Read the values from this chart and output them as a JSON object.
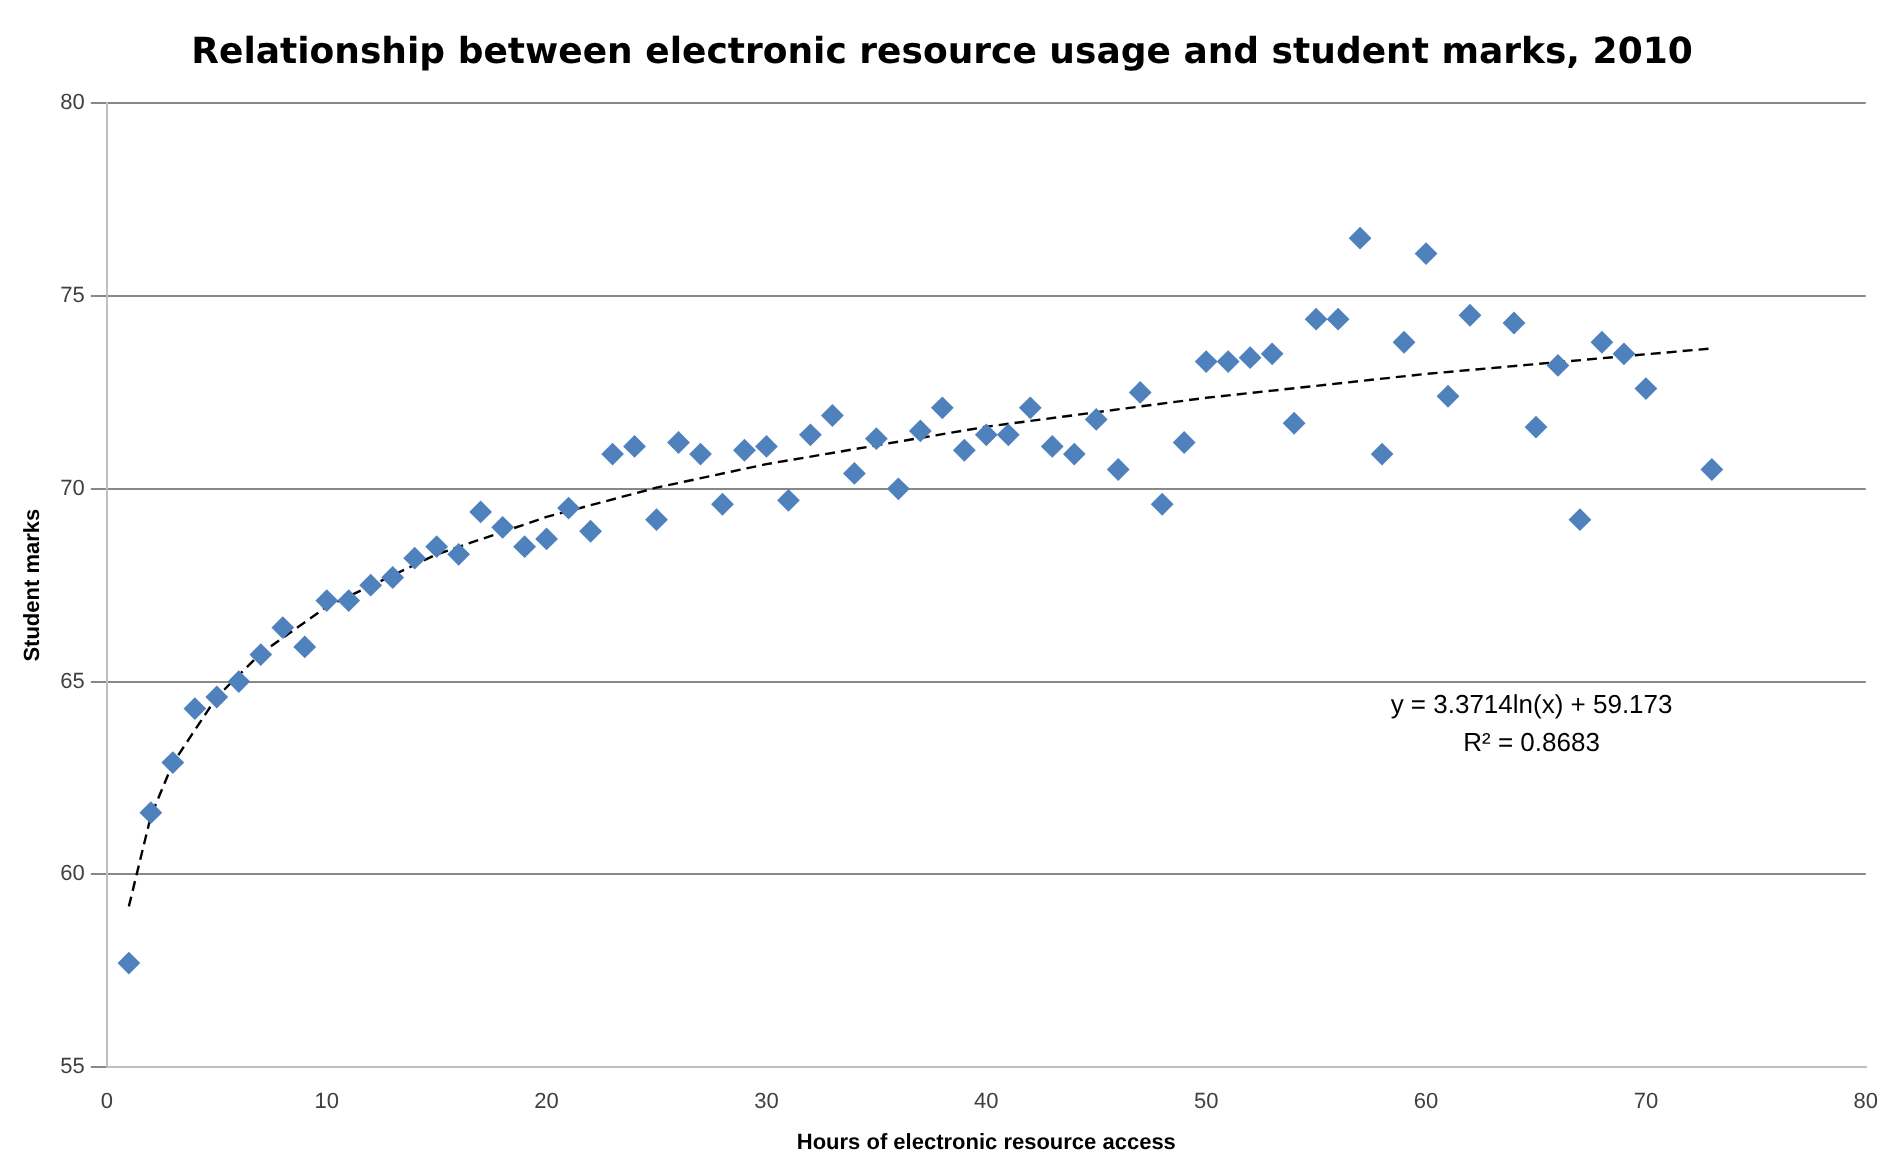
{
  "chart_data": {
    "type": "scatter",
    "title": "Relationship between electronic resource usage and student marks, 2010",
    "xlabel": "Hours of electronic resource access",
    "ylabel": "Student marks",
    "xlim": [
      0,
      80
    ],
    "xticks": [
      0,
      10,
      20,
      30,
      40,
      50,
      60,
      70,
      80
    ],
    "ylim": [
      55,
      80
    ],
    "yticks": [
      55,
      60,
      65,
      70,
      75,
      80
    ],
    "grid": "y",
    "marker": "diamond",
    "annotations": [
      "y = 3.3714ln(x) + 59.173",
      "R² = 0.8683"
    ],
    "series": [
      {
        "type": "scatter",
        "color": "#4f81bd",
        "x": [
          1,
          2,
          3,
          4,
          5,
          6,
          7,
          8,
          9,
          10,
          11,
          12,
          13,
          14,
          15,
          16,
          17,
          18,
          19,
          20,
          21,
          22,
          23,
          24,
          25,
          26,
          27,
          28,
          29,
          30,
          31,
          32,
          33,
          34,
          35,
          36,
          37,
          38,
          39,
          40,
          41,
          42,
          43,
          44,
          45,
          46,
          47,
          48,
          49,
          50,
          51,
          52,
          53,
          54,
          55,
          56,
          57,
          58,
          59,
          60,
          61,
          62,
          64,
          65,
          66,
          67,
          68,
          69,
          70,
          73
        ],
        "values": [
          57.7,
          61.6,
          62.9,
          64.3,
          64.6,
          65.0,
          65.7,
          66.4,
          65.9,
          67.1,
          67.1,
          67.5,
          67.7,
          68.2,
          68.5,
          68.3,
          69.4,
          69.0,
          68.5,
          68.7,
          69.5,
          68.9,
          70.9,
          71.1,
          69.2,
          71.2,
          70.9,
          69.6,
          71.0,
          71.1,
          69.7,
          71.4,
          71.9,
          70.4,
          71.3,
          70.0,
          71.5,
          72.1,
          71.0,
          71.4,
          71.4,
          72.1,
          71.1,
          70.9,
          71.8,
          70.5,
          72.5,
          69.6,
          71.2,
          73.3,
          73.3,
          73.4,
          73.5,
          71.7,
          74.4,
          74.4,
          76.5,
          70.9,
          73.8,
          76.1,
          72.4,
          74.5,
          74.3,
          71.6,
          73.2,
          69.2,
          73.8,
          73.5,
          72.6,
          70.5
        ]
      },
      {
        "type": "line",
        "color": "#000000",
        "line_style": "dashed",
        "marker": "none",
        "x": [
          1,
          2,
          3,
          5,
          7,
          10,
          15,
          20,
          25,
          30,
          40,
          50,
          60,
          73
        ],
        "values": [
          59.17,
          61.51,
          62.88,
          64.6,
          65.73,
          66.94,
          68.3,
          69.27,
          70.03,
          70.64,
          71.61,
          72.36,
          72.98,
          73.64
        ]
      }
    ]
  }
}
